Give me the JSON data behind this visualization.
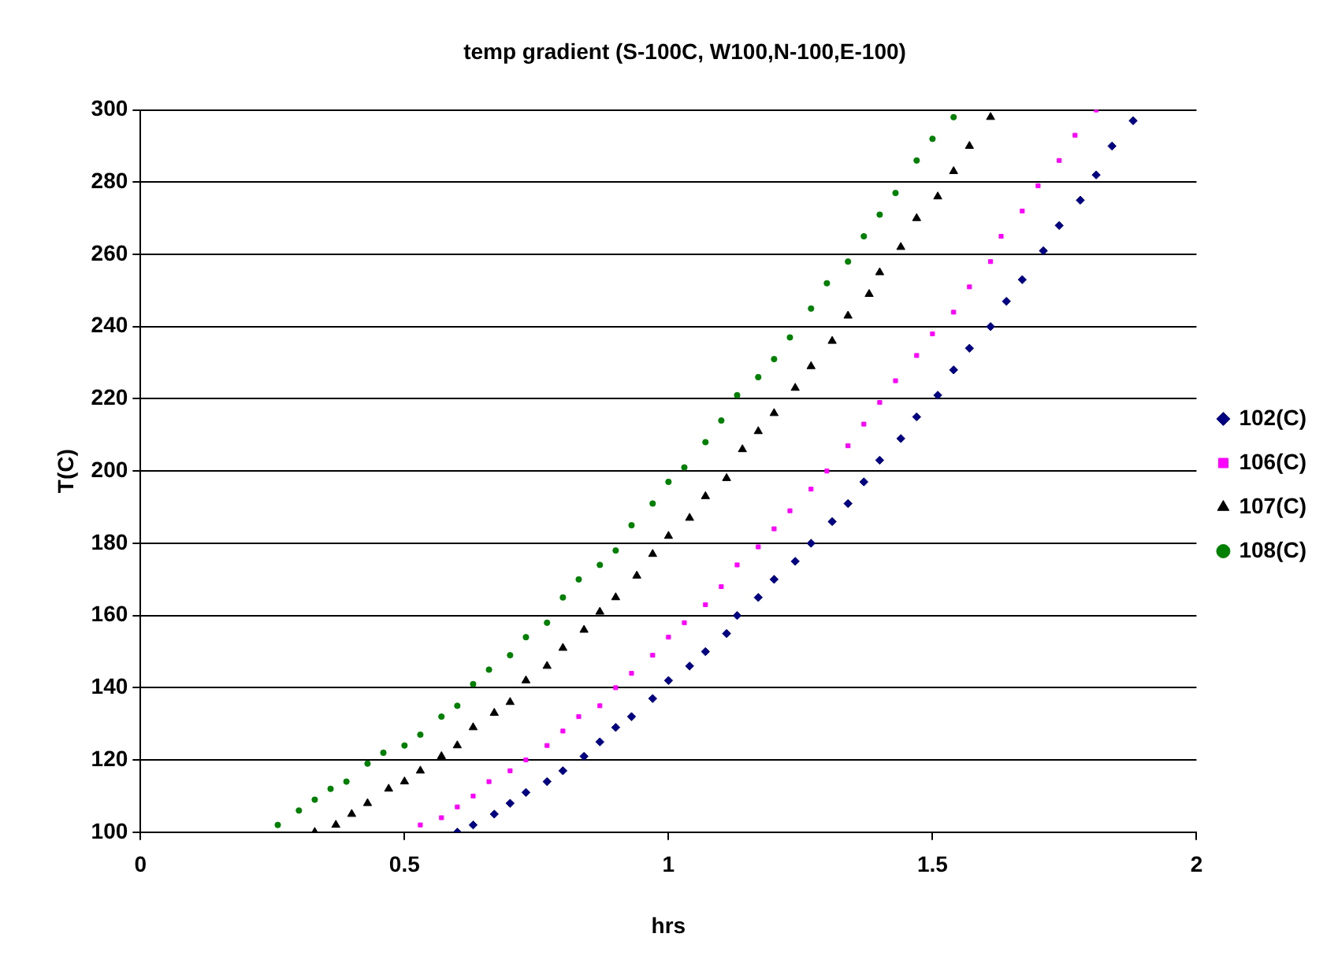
{
  "chart_data": {
    "type": "scatter",
    "title": "temp gradient (S-100C, W100,N-100,E-100)",
    "xlabel": "hrs",
    "ylabel": "T(C)",
    "xlim": [
      0,
      2
    ],
    "xticks": [
      0,
      0.5,
      1,
      1.5,
      2
    ],
    "ylim": [
      100,
      300
    ],
    "yticks": [
      100,
      120,
      140,
      160,
      180,
      200,
      220,
      240,
      260,
      280,
      300
    ],
    "grid": "y",
    "legend": "right",
    "series": [
      {
        "name": "102(C)",
        "color": "#000080",
        "marker": "diamond",
        "x": [
          0.6,
          0.63,
          0.67,
          0.7,
          0.73,
          0.77,
          0.8,
          0.84,
          0.87,
          0.9,
          0.93,
          0.97,
          1.0,
          1.04,
          1.07,
          1.11,
          1.13,
          1.17,
          1.2,
          1.24,
          1.27,
          1.31,
          1.34,
          1.37,
          1.4,
          1.44,
          1.47,
          1.51,
          1.54,
          1.57,
          1.61,
          1.64,
          1.67,
          1.71,
          1.74,
          1.78,
          1.81,
          1.84,
          1.88
        ],
        "values": [
          100,
          102,
          105,
          108,
          111,
          114,
          117,
          121,
          125,
          129,
          132,
          137,
          142,
          146,
          150,
          155,
          160,
          165,
          170,
          175,
          180,
          186,
          191,
          197,
          203,
          209,
          215,
          221,
          228,
          234,
          240,
          247,
          253,
          261,
          268,
          275,
          282,
          290,
          297
        ]
      },
      {
        "name": "106(C)",
        "color": "#ff00ff",
        "marker": "square",
        "x": [
          0.53,
          0.57,
          0.6,
          0.63,
          0.66,
          0.7,
          0.73,
          0.77,
          0.8,
          0.83,
          0.87,
          0.9,
          0.93,
          0.97,
          1.0,
          1.03,
          1.07,
          1.1,
          1.13,
          1.17,
          1.2,
          1.23,
          1.27,
          1.3,
          1.34,
          1.37,
          1.4,
          1.43,
          1.47,
          1.5,
          1.54,
          1.57,
          1.61,
          1.63,
          1.67,
          1.7,
          1.74,
          1.77,
          1.81
        ],
        "values": [
          102,
          104,
          107,
          110,
          114,
          117,
          120,
          124,
          128,
          132,
          135,
          140,
          144,
          149,
          154,
          158,
          163,
          168,
          174,
          179,
          184,
          189,
          195,
          200,
          207,
          213,
          219,
          225,
          232,
          238,
          244,
          251,
          258,
          265,
          272,
          279,
          286,
          293,
          300
        ]
      },
      {
        "name": "107(C)",
        "color": "#000000",
        "marker": "triangle",
        "x": [
          0.33,
          0.37,
          0.4,
          0.43,
          0.47,
          0.5,
          0.53,
          0.57,
          0.6,
          0.63,
          0.67,
          0.7,
          0.73,
          0.77,
          0.8,
          0.84,
          0.87,
          0.9,
          0.94,
          0.97,
          1.0,
          1.04,
          1.07,
          1.11,
          1.14,
          1.17,
          1.2,
          1.24,
          1.27,
          1.31,
          1.34,
          1.38,
          1.4,
          1.44,
          1.47,
          1.51,
          1.54,
          1.57,
          1.61
        ],
        "values": [
          100,
          102,
          105,
          108,
          112,
          114,
          117,
          121,
          124,
          129,
          133,
          136,
          142,
          146,
          151,
          156,
          161,
          165,
          171,
          177,
          182,
          187,
          193,
          198,
          206,
          211,
          216,
          223,
          229,
          236,
          243,
          249,
          255,
          262,
          270,
          276,
          283,
          290,
          298
        ]
      },
      {
        "name": "108(C)",
        "color": "#008000",
        "marker": "circle",
        "x": [
          0.26,
          0.3,
          0.33,
          0.36,
          0.39,
          0.43,
          0.46,
          0.5,
          0.53,
          0.57,
          0.6,
          0.63,
          0.66,
          0.7,
          0.73,
          0.77,
          0.8,
          0.83,
          0.87,
          0.9,
          0.93,
          0.97,
          1.0,
          1.03,
          1.07,
          1.1,
          1.13,
          1.17,
          1.2,
          1.23,
          1.27,
          1.3,
          1.34,
          1.37,
          1.4,
          1.43,
          1.47,
          1.5,
          1.54
        ],
        "values": [
          102,
          106,
          109,
          112,
          114,
          119,
          122,
          124,
          127,
          132,
          135,
          141,
          145,
          149,
          154,
          158,
          165,
          170,
          174,
          178,
          185,
          191,
          197,
          201,
          208,
          214,
          221,
          226,
          231,
          237,
          245,
          252,
          258,
          265,
          271,
          277,
          286,
          292,
          298
        ]
      }
    ]
  }
}
